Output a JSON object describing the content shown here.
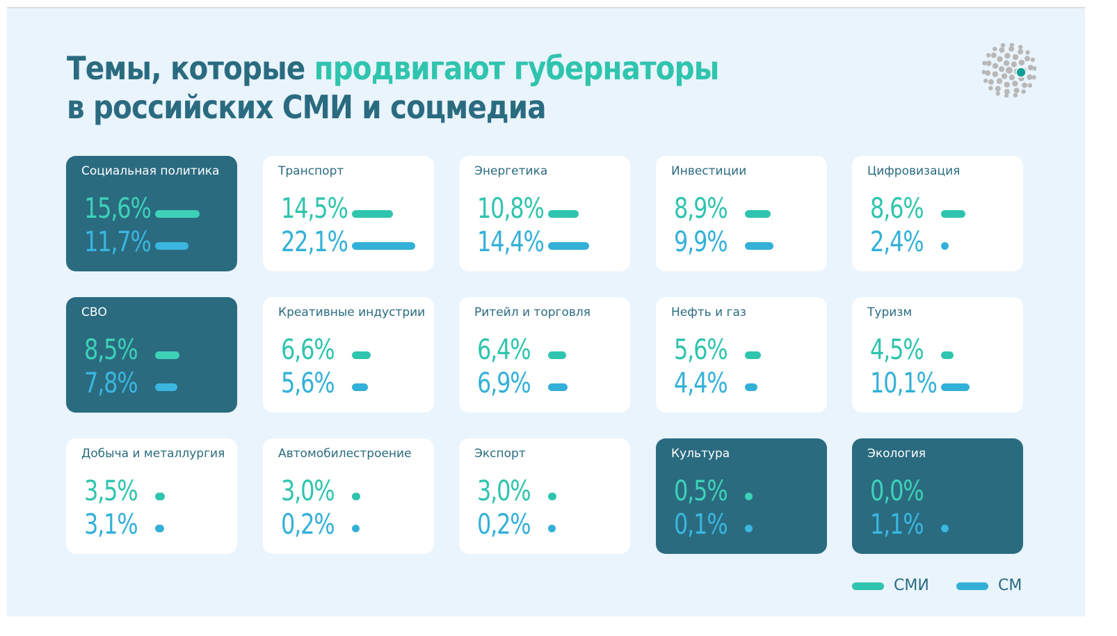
{
  "title": {
    "line1_part1": "Темы, которые ",
    "line1_accent": "продвигают губернаторы",
    "line2": "в российских СМИ и соцмедиа"
  },
  "colors": {
    "dark_card": "#2a6b80",
    "light_card": "#ffffff",
    "smi": "#2fc4ad",
    "sm": "#33b0d8",
    "background": "#e9f4fc"
  },
  "chart_data": {
    "type": "bar",
    "title": "Темы, которые продвигают губернаторы в российских СМИ и соцмедиа",
    "legend_placement": "bottom-right",
    "series": [
      {
        "key": "smi",
        "name": "СМИ",
        "color": "#2fc4ad"
      },
      {
        "key": "sm",
        "name": "СМ",
        "color": "#33b0d8"
      }
    ],
    "topics": [
      {
        "name": "Социальная политика",
        "smi": 15.6,
        "sm": 11.7,
        "smi_label": "15,6%",
        "sm_label": "11,7%",
        "highlight": true
      },
      {
        "name": "Транспорт",
        "smi": 14.5,
        "sm": 22.1,
        "smi_label": "14,5%",
        "sm_label": "22,1%",
        "highlight": false
      },
      {
        "name": "Энергетика",
        "smi": 10.8,
        "sm": 14.4,
        "smi_label": "10,8%",
        "sm_label": "14,4%",
        "highlight": false
      },
      {
        "name": "Инвестиции",
        "smi": 8.9,
        "sm": 9.9,
        "smi_label": "8,9%",
        "sm_label": "9,9%",
        "highlight": false
      },
      {
        "name": "Цифровизация",
        "smi": 8.6,
        "sm": 2.4,
        "smi_label": "8,6%",
        "sm_label": "2,4%",
        "highlight": false
      },
      {
        "name": "СВО",
        "smi": 8.5,
        "sm": 7.8,
        "smi_label": "8,5%",
        "sm_label": "7,8%",
        "highlight": true
      },
      {
        "name": "Креативные индустрии",
        "smi": 6.6,
        "sm": 5.6,
        "smi_label": "6,6%",
        "sm_label": "5,6%",
        "highlight": false
      },
      {
        "name": "Ритейл и торговля",
        "smi": 6.4,
        "sm": 6.9,
        "smi_label": "6,4%",
        "sm_label": "6,9%",
        "highlight": false
      },
      {
        "name": "Нефть и газ",
        "smi": 5.6,
        "sm": 4.4,
        "smi_label": "5,6%",
        "sm_label": "4,4%",
        "highlight": false
      },
      {
        "name": "Туризм",
        "smi": 4.5,
        "sm": 10.1,
        "smi_label": "4,5%",
        "sm_label": "10,1%",
        "highlight": false
      },
      {
        "name": "Добыча и металлургия",
        "smi": 3.5,
        "sm": 3.1,
        "smi_label": "3,5%",
        "sm_label": "3,1%",
        "highlight": false
      },
      {
        "name": "Автомобилестроение",
        "smi": 3.0,
        "sm": 0.2,
        "smi_label": "3,0%",
        "sm_label": "0,2%",
        "highlight": false
      },
      {
        "name": "Экспорт",
        "smi": 3.0,
        "sm": 0.2,
        "smi_label": "3,0%",
        "sm_label": "0,2%",
        "highlight": false
      },
      {
        "name": "Культура",
        "smi": 0.5,
        "sm": 0.1,
        "smi_label": "0,5%",
        "sm_label": "0,1%",
        "highlight": true
      },
      {
        "name": "Экология",
        "smi": 0.0,
        "sm": 1.1,
        "smi_label": "0,0%",
        "sm_label": "1,1%",
        "highlight": true
      }
    ]
  }
}
